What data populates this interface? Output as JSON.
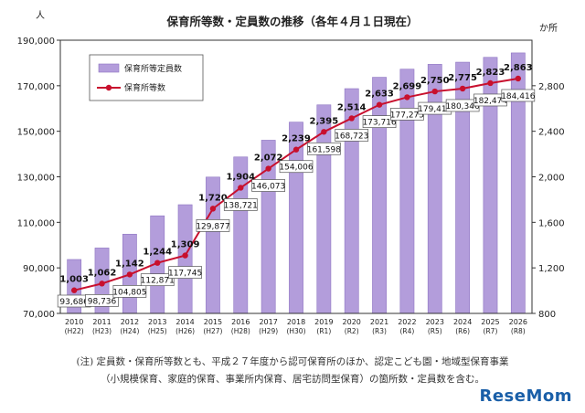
{
  "chart_data": {
    "type": "bar",
    "title": "保育所等数・定員数の推移（各年４月１日現在）",
    "ylabel_left": "人",
    "ylabel_right": "か所",
    "categories": [
      "2010",
      "2011",
      "2012",
      "2013",
      "2014",
      "2015",
      "2016",
      "2017",
      "2018",
      "2019",
      "2020",
      "2021",
      "2022",
      "2023",
      "2024",
      "2025",
      "2026"
    ],
    "categories_sub": [
      "(H22)",
      "(H23)",
      "(H24)",
      "(H25)",
      "(H26)",
      "(H27)",
      "(H28)",
      "(H29)",
      "(H30)",
      "(R1)",
      "(R2)",
      "(R3)",
      "(R4)",
      "(R5)",
      "(R6)",
      "(R7)",
      "(R8)"
    ],
    "left_axis": {
      "min": 70000,
      "max": 190000,
      "ticks": [
        70000,
        90000,
        110000,
        130000,
        150000,
        170000,
        190000
      ],
      "tick_labels": [
        "70,000",
        "90,000",
        "110,000",
        "130,000",
        "150,000",
        "170,000",
        "190,000"
      ]
    },
    "right_axis": {
      "min": 800,
      "max": 3200,
      "ticks": [
        800,
        1200,
        1600,
        2000,
        2400,
        2800
      ],
      "tick_labels": [
        "800",
        "1,200",
        "1,600",
        "2,000",
        "2,400",
        "2,800"
      ]
    },
    "series": [
      {
        "name": "保育所等定員数",
        "type": "bar",
        "axis": "left",
        "color": "#b39ddb",
        "values": [
          93686,
          98736,
          104805,
          112871,
          117745,
          129877,
          138721,
          146073,
          154006,
          161598,
          168723,
          173716,
          177275,
          179416,
          180346,
          182474,
          184416
        ],
        "labels": [
          "93,686",
          "98,736",
          "104,805",
          "112,871",
          "117,745",
          "129,877",
          "138,721",
          "146,073",
          "154,006",
          "161,598",
          "168,723",
          "173,716",
          "177,275",
          "179,416",
          "180,346",
          "182,474",
          "184,416"
        ]
      },
      {
        "name": "保育所等数",
        "type": "line",
        "axis": "right",
        "color": "#c8102e",
        "values": [
          1003,
          1062,
          1142,
          1244,
          1309,
          1720,
          1904,
          2072,
          2239,
          2395,
          2514,
          2633,
          2699,
          2750,
          2775,
          2823,
          2863
        ],
        "labels": [
          "1,003",
          "1,062",
          "1,142",
          "1,244",
          "1,309",
          "1,720",
          "1,904",
          "2,072",
          "2,239",
          "2,395",
          "2,514",
          "2,633",
          "2,699",
          "2,750",
          "2,775",
          "2,823",
          "2,863"
        ]
      }
    ],
    "legend": "top-left",
    "grid": false
  },
  "notes": [
    "(注) 定員数・保育所等数とも、平成２７年度から認可保育所のほか、認定こども園・地域型保育事業",
    "（小規模保育、家庭的保育、事業所内保育、居宅訪問型保育）の箇所数・定員数を含む。"
  ],
  "brand": "ReseMom"
}
